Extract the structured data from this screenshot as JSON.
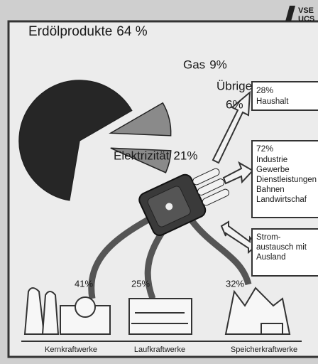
{
  "logo": [
    "VSE",
    "UCS"
  ],
  "chart_data": {
    "type": "pie",
    "categories": [
      "Erdölprodukte",
      "Gas",
      "Übrige",
      "Elektrizität"
    ],
    "values": [
      64,
      9,
      6,
      21
    ],
    "value_labels": [
      "64 %",
      "9%",
      "6%",
      "21%"
    ],
    "colors": [
      "#262626",
      "#8a8a8a",
      "#8a8a8a",
      "#4a4a4a"
    ]
  },
  "sources": [
    {
      "value_label": "41%",
      "label": "Kernkraftwerke"
    },
    {
      "value_label": "25%",
      "label": "Laufkraftwerke"
    },
    {
      "value_label": "32%",
      "label": "Speicherkraftwerke"
    }
  ],
  "uses": [
    {
      "value_label": "28%",
      "lines": [
        "Haushalt"
      ]
    },
    {
      "value_label": "72%",
      "lines": [
        "Industrie",
        "Gewerbe",
        "Dienstleistungen",
        "Bahnen",
        "Landwirtschaf"
      ]
    },
    {
      "lines": [
        "Strom-",
        "austausch mit",
        "Ausland"
      ]
    }
  ]
}
